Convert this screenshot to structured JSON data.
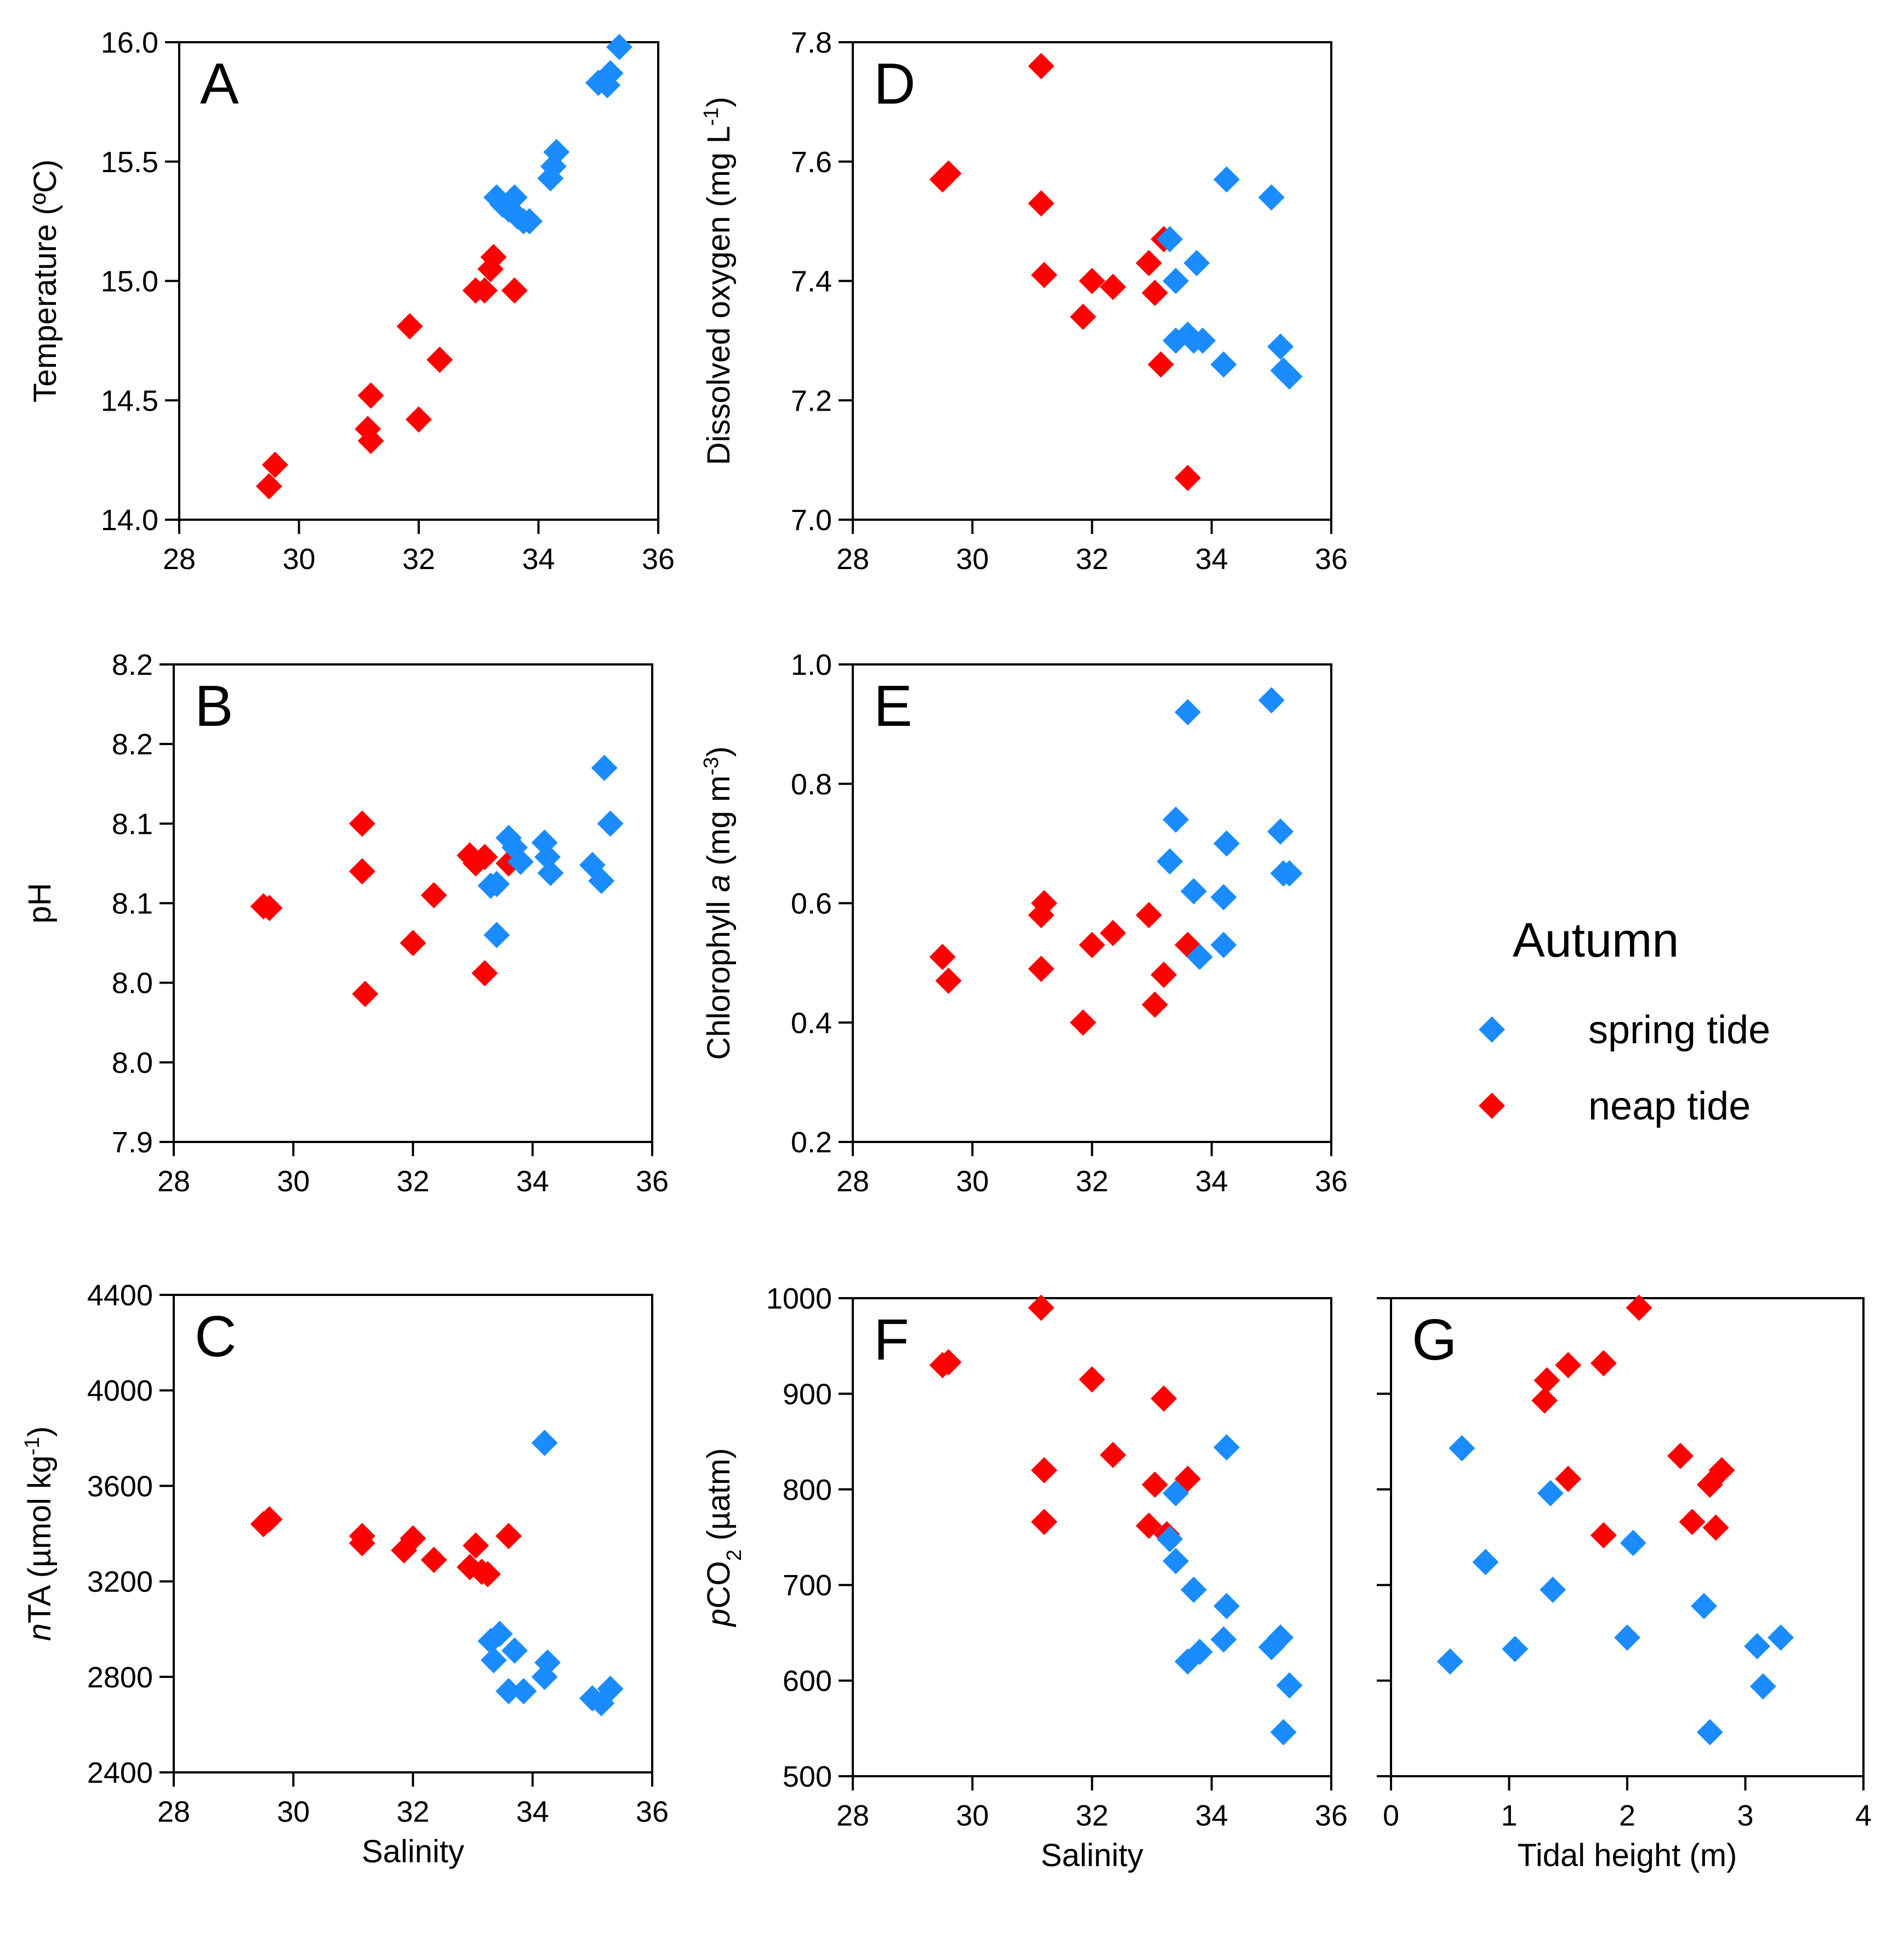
{
  "legend": {
    "title": "Autumn",
    "items": [
      {
        "name": "spring tide",
        "color": "#1a8cff"
      },
      {
        "name": "neap tide",
        "color": "#ff0000"
      }
    ]
  },
  "chart_data": [
    {
      "panel": "A",
      "type": "scatter",
      "xlabel": "",
      "ylabel": "Temperature (ºC)",
      "xlim": [
        28,
        36
      ],
      "ylim": [
        14.0,
        16.0
      ],
      "xticks": [
        28,
        30,
        32,
        34,
        36
      ],
      "xtick_labels": [
        "28",
        "30",
        "32",
        "34",
        "36"
      ],
      "yticks": [
        14.0,
        14.5,
        15.0,
        15.5,
        16.0
      ],
      "ytick_labels": [
        "14.0",
        "14.5",
        "15.0",
        "15.5",
        "16.0"
      ],
      "series": [
        {
          "name": "neap tide",
          "color": "#ff0000",
          "x": [
            29.5,
            29.6,
            31.15,
            31.2,
            31.2,
            31.85,
            32.0,
            32.35,
            32.95,
            33.1,
            33.2,
            33.25,
            33.6
          ],
          "y": [
            14.14,
            14.23,
            14.38,
            14.33,
            14.52,
            14.81,
            14.42,
            14.67,
            14.96,
            14.96,
            15.05,
            15.1,
            14.96
          ]
        },
        {
          "name": "spring tide",
          "color": "#1a8cff",
          "x": [
            33.3,
            33.4,
            33.5,
            33.6,
            33.65,
            33.75,
            33.85,
            34.2,
            34.25,
            34.3,
            35.0,
            35.15,
            35.2,
            35.35
          ],
          "y": [
            15.35,
            15.32,
            15.3,
            15.35,
            15.27,
            15.25,
            15.25,
            15.43,
            15.48,
            15.54,
            15.83,
            15.82,
            15.87,
            15.98
          ]
        }
      ]
    },
    {
      "panel": "D",
      "type": "scatter",
      "xlabel": "",
      "ylabel": "Dissolved oxygen (mg L-1)",
      "xlim": [
        28,
        36
      ],
      "ylim": [
        7.0,
        7.8
      ],
      "xticks": [
        28,
        30,
        32,
        34,
        36
      ],
      "xtick_labels": [
        "28",
        "30",
        "32",
        "34",
        "36"
      ],
      "yticks": [
        7.0,
        7.2,
        7.4,
        7.6,
        7.8
      ],
      "ytick_labels": [
        "7.0",
        "7.2",
        "7.4",
        "7.6",
        "7.8"
      ],
      "series": [
        {
          "name": "neap tide",
          "color": "#ff0000",
          "x": [
            29.5,
            29.6,
            31.15,
            31.15,
            31.2,
            31.85,
            32.0,
            32.35,
            32.95,
            33.05,
            33.15,
            33.2,
            33.6
          ],
          "y": [
            7.57,
            7.58,
            7.76,
            7.53,
            7.41,
            7.34,
            7.4,
            7.39,
            7.43,
            7.38,
            7.26,
            7.47,
            7.07
          ]
        },
        {
          "name": "spring tide",
          "color": "#1a8cff",
          "x": [
            33.3,
            33.4,
            33.4,
            33.6,
            33.7,
            33.75,
            33.85,
            34.2,
            34.25,
            35.0,
            35.15,
            35.2,
            35.3
          ],
          "y": [
            7.47,
            7.4,
            7.3,
            7.31,
            7.3,
            7.43,
            7.3,
            7.26,
            7.57,
            7.54,
            7.29,
            7.25,
            7.24
          ]
        }
      ]
    },
    {
      "panel": "B",
      "type": "scatter",
      "xlabel": "",
      "ylabel": "pH",
      "xlim": [
        28,
        36
      ],
      "ylim": [
        7.9,
        8.2
      ],
      "xticks": [
        28,
        30,
        32,
        34,
        36
      ],
      "xtick_labels": [
        "28",
        "30",
        "32",
        "34",
        "36"
      ],
      "yticks": [
        7.9,
        7.95,
        8.0,
        8.05,
        8.1,
        8.15,
        8.2
      ],
      "ytick_labels": [
        "7.9",
        "8.0",
        "8.0",
        "8.1",
        "8.1",
        "8.2",
        "8.2"
      ],
      "series": [
        {
          "name": "neap tide",
          "color": "#ff0000",
          "x": [
            29.5,
            29.6,
            31.15,
            31.15,
            31.2,
            32.0,
            32.35,
            32.95,
            33.05,
            33.2,
            33.2,
            33.6
          ],
          "y": [
            8.048,
            8.047,
            8.1,
            8.07,
            7.993,
            8.025,
            8.055,
            8.08,
            8.075,
            8.079,
            8.006,
            8.075
          ]
        },
        {
          "name": "spring tide",
          "color": "#1a8cff",
          "x": [
            33.3,
            33.4,
            33.4,
            33.6,
            33.7,
            33.8,
            34.2,
            34.25,
            34.3,
            35.0,
            35.15,
            35.2,
            35.3
          ],
          "y": [
            8.061,
            8.062,
            8.03,
            8.091,
            8.085,
            8.076,
            8.088,
            8.079,
            8.069,
            8.074,
            8.064,
            8.135,
            8.1
          ]
        }
      ]
    },
    {
      "panel": "E",
      "type": "scatter",
      "xlabel": "",
      "ylabel": "Chlorophyll a (mg m-3)",
      "xlim": [
        28,
        36
      ],
      "ylim": [
        0.2,
        1.0
      ],
      "xticks": [
        28,
        30,
        32,
        34,
        36
      ],
      "xtick_labels": [
        "28",
        "30",
        "32",
        "34",
        "36"
      ],
      "yticks": [
        0.2,
        0.4,
        0.6,
        0.8,
        1.0
      ],
      "ytick_labels": [
        "0.2",
        "0.4",
        "0.6",
        "0.8",
        "1.0"
      ],
      "series": [
        {
          "name": "neap tide",
          "color": "#ff0000",
          "x": [
            29.5,
            29.6,
            31.15,
            31.15,
            31.2,
            31.85,
            32.0,
            32.35,
            32.95,
            33.05,
            33.2,
            33.6
          ],
          "y": [
            0.51,
            0.47,
            0.49,
            0.58,
            0.6,
            0.4,
            0.53,
            0.55,
            0.58,
            0.43,
            0.48,
            0.53
          ]
        },
        {
          "name": "spring tide",
          "color": "#1a8cff",
          "x": [
            33.3,
            33.4,
            33.6,
            33.7,
            33.8,
            34.2,
            34.2,
            34.25,
            35.0,
            35.15,
            35.2,
            35.3
          ],
          "y": [
            0.67,
            0.74,
            0.92,
            0.62,
            0.51,
            0.53,
            0.61,
            0.7,
            0.94,
            0.72,
            0.65,
            0.65
          ]
        }
      ]
    },
    {
      "panel": "C",
      "type": "scatter",
      "xlabel": "Salinity",
      "ylabel": "nTA (µmol kg-1)",
      "xlim": [
        28,
        36
      ],
      "ylim": [
        2400,
        4400
      ],
      "xticks": [
        28,
        30,
        32,
        34,
        36
      ],
      "xtick_labels": [
        "28",
        "30",
        "32",
        "34",
        "36"
      ],
      "yticks": [
        2400,
        2800,
        3200,
        3600,
        4000,
        4400
      ],
      "ytick_labels": [
        "2400",
        "2800",
        "3200",
        "3600",
        "4000",
        "4400"
      ],
      "series": [
        {
          "name": "neap tide",
          "color": "#ff0000",
          "x": [
            29.5,
            29.6,
            31.15,
            31.15,
            31.85,
            32.0,
            32.35,
            32.95,
            33.05,
            33.15,
            33.25,
            33.6
          ],
          "y": [
            3440,
            3460,
            3390,
            3360,
            3330,
            3380,
            3290,
            3260,
            3350,
            3240,
            3230,
            3390
          ]
        },
        {
          "name": "spring tide",
          "color": "#1a8cff",
          "x": [
            33.3,
            33.35,
            33.45,
            33.6,
            33.7,
            33.85,
            34.2,
            34.2,
            34.25,
            35.0,
            35.15,
            35.3
          ],
          "y": [
            2950,
            2870,
            2980,
            2740,
            2910,
            2740,
            3780,
            2800,
            2860,
            2710,
            2690,
            2750
          ]
        }
      ]
    },
    {
      "panel": "F",
      "type": "scatter",
      "xlabel": "Salinity",
      "ylabel": "pCO2 (µatm)",
      "xlim": [
        28,
        36
      ],
      "ylim": [
        500,
        1000
      ],
      "xticks": [
        28,
        30,
        32,
        34,
        36
      ],
      "xtick_labels": [
        "28",
        "30",
        "32",
        "34",
        "36"
      ],
      "yticks": [
        500,
        600,
        700,
        800,
        900,
        1000
      ],
      "ytick_labels": [
        "500",
        "600",
        "700",
        "800",
        "900",
        "1000"
      ],
      "series": [
        {
          "name": "neap tide",
          "color": "#ff0000",
          "x": [
            29.5,
            29.6,
            31.15,
            31.2,
            31.2,
            32.0,
            32.35,
            32.95,
            33.05,
            33.2,
            33.25,
            33.6
          ],
          "y": [
            930,
            933,
            990,
            820,
            766,
            915,
            836,
            762,
            805,
            895,
            753,
            811
          ]
        },
        {
          "name": "spring tide",
          "color": "#1a8cff",
          "x": [
            33.3,
            33.4,
            33.4,
            33.6,
            33.7,
            33.8,
            34.2,
            34.25,
            34.25,
            35.0,
            35.15,
            35.2,
            35.3
          ],
          "y": [
            748,
            725,
            796,
            620,
            695,
            630,
            643,
            678,
            844,
            635,
            645,
            546,
            595
          ]
        }
      ]
    },
    {
      "panel": "G",
      "type": "scatter",
      "xlabel": "Tidal height (m)",
      "ylabel": "",
      "xlim": [
        0,
        4
      ],
      "ylim": [
        500,
        1000
      ],
      "xticks": [
        0,
        1,
        2,
        3,
        4
      ],
      "xtick_labels": [
        "0",
        "1",
        "2",
        "3",
        "4"
      ],
      "yticks": [
        500,
        600,
        700,
        800,
        900,
        1000
      ],
      "ytick_labels": [],
      "series": [
        {
          "name": "neap tide",
          "color": "#ff0000",
          "x": [
            1.3,
            1.32,
            1.5,
            1.5,
            1.8,
            1.8,
            2.1,
            2.45,
            2.55,
            2.7,
            2.75,
            2.8
          ],
          "y": [
            893,
            914,
            930,
            811,
            752,
            932,
            990,
            835,
            766,
            805,
            760,
            820
          ]
        },
        {
          "name": "spring tide",
          "color": "#1a8cff",
          "x": [
            0.5,
            0.6,
            0.8,
            1.05,
            1.35,
            1.37,
            2.0,
            2.05,
            2.65,
            2.7,
            3.1,
            3.15,
            3.3
          ],
          "y": [
            620,
            843,
            724,
            633,
            796,
            695,
            645,
            744,
            678,
            546,
            636,
            594,
            645
          ]
        }
      ]
    }
  ],
  "panel_text": {
    "A": "A",
    "B": "B",
    "C": "C",
    "D": "D",
    "E": "E",
    "F": "F",
    "G": "G"
  },
  "ylabels": {
    "A": {
      "main": "Temperature (ºC)"
    },
    "D": {
      "main": "Dissolved oxygen (mg L",
      "sup": "-1",
      "tail": ")"
    },
    "B": {
      "main": "pH"
    },
    "E": {
      "pre": "Chlorophyll ",
      "italic": "a",
      "main": " (mg m",
      "sup": "-3",
      "tail": ")"
    },
    "C": {
      "italic": "n",
      "main": "TA (µmol kg",
      "sup": "-1",
      "tail": ")"
    },
    "F": {
      "italic": "p",
      "main": "CO",
      "sub": "2",
      "tail": " (µatm)"
    }
  }
}
